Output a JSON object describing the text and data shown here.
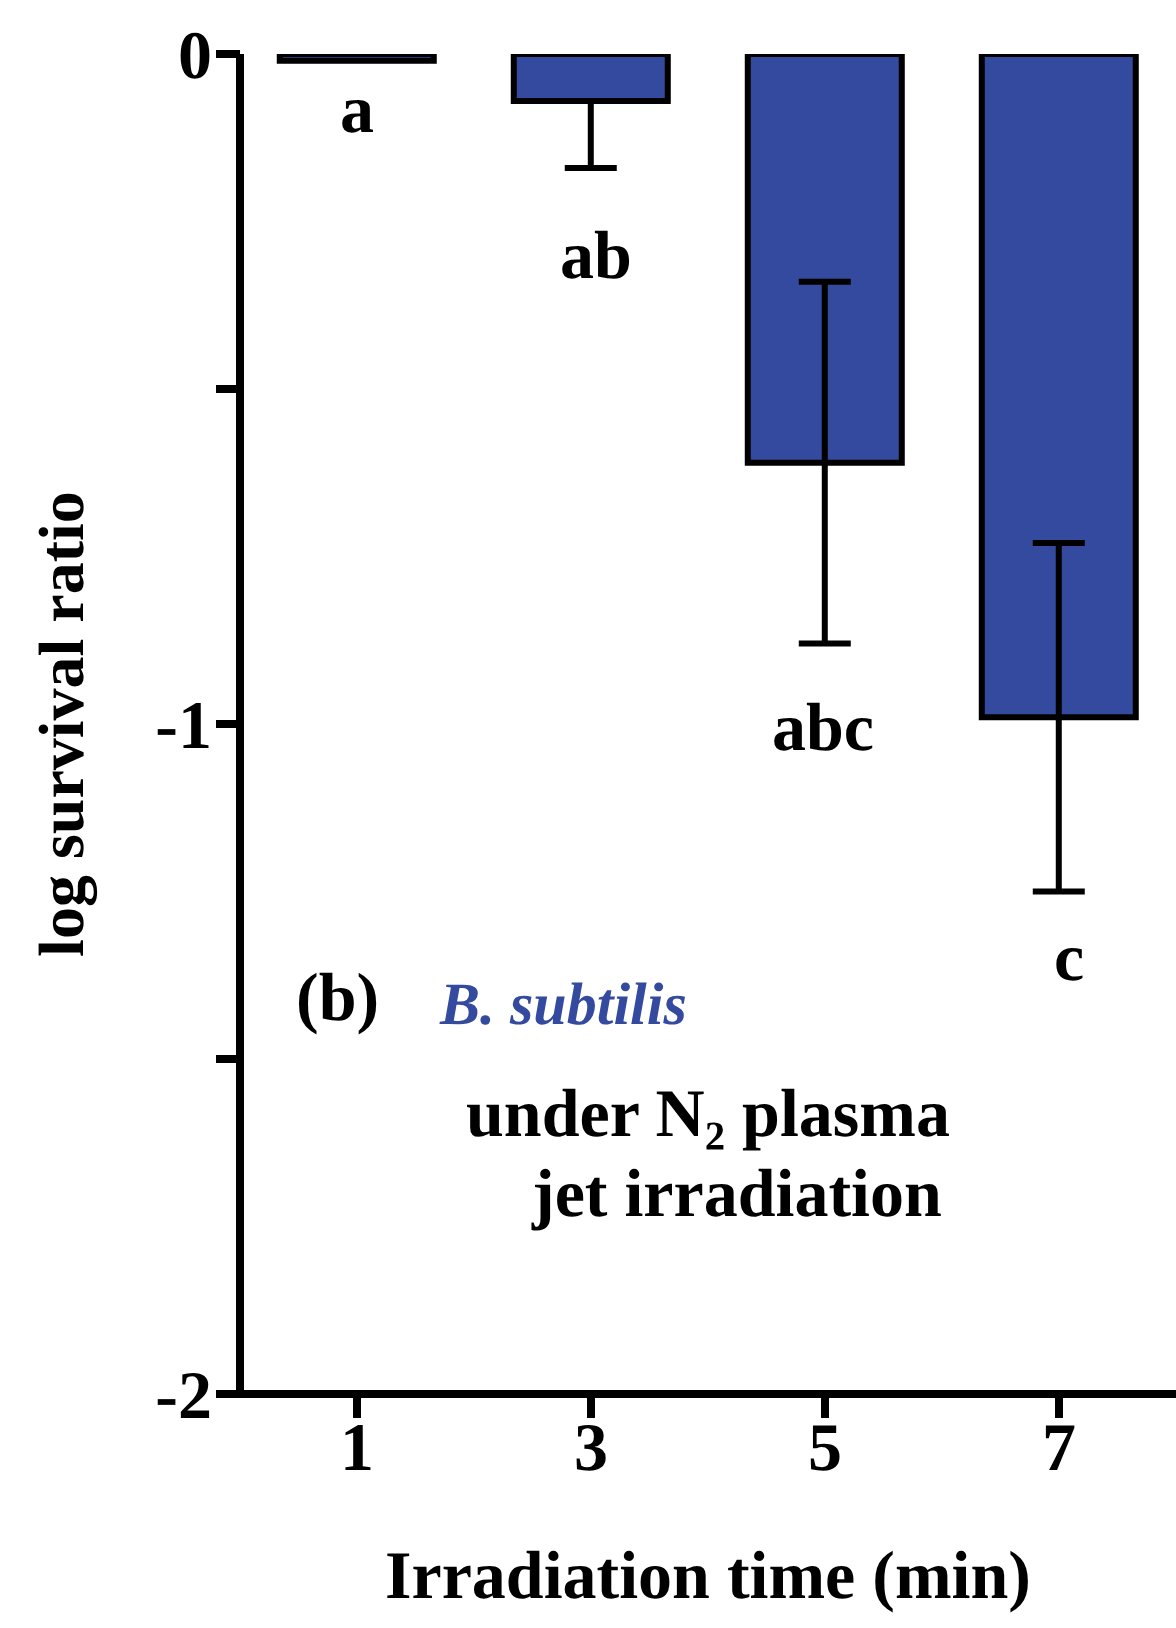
{
  "chart_data": {
    "type": "bar",
    "xlabel": "Irradiation time (min)",
    "ylabel": "log survival ratio",
    "categories": [
      "1",
      "3",
      "5",
      "7"
    ],
    "values": [
      -0.01,
      -0.07,
      -0.61,
      -0.99
    ],
    "errors": [
      null,
      [
        -0.17,
        -0.07
      ],
      0.27,
      0.26
    ],
    "color": "#344a9e",
    "ylim": [
      -2,
      0
    ],
    "yticks": [
      0,
      {
        "value": -0.5,
        "label": null
      },
      -1,
      {
        "value": -1.5,
        "label": null
      },
      -2
    ],
    "grid": false,
    "annotations": [
      "a",
      "ab",
      "abc",
      "c",
      "(b)",
      "B. subtilis",
      "under N₂ plasma",
      "jet irradiation"
    ]
  }
}
